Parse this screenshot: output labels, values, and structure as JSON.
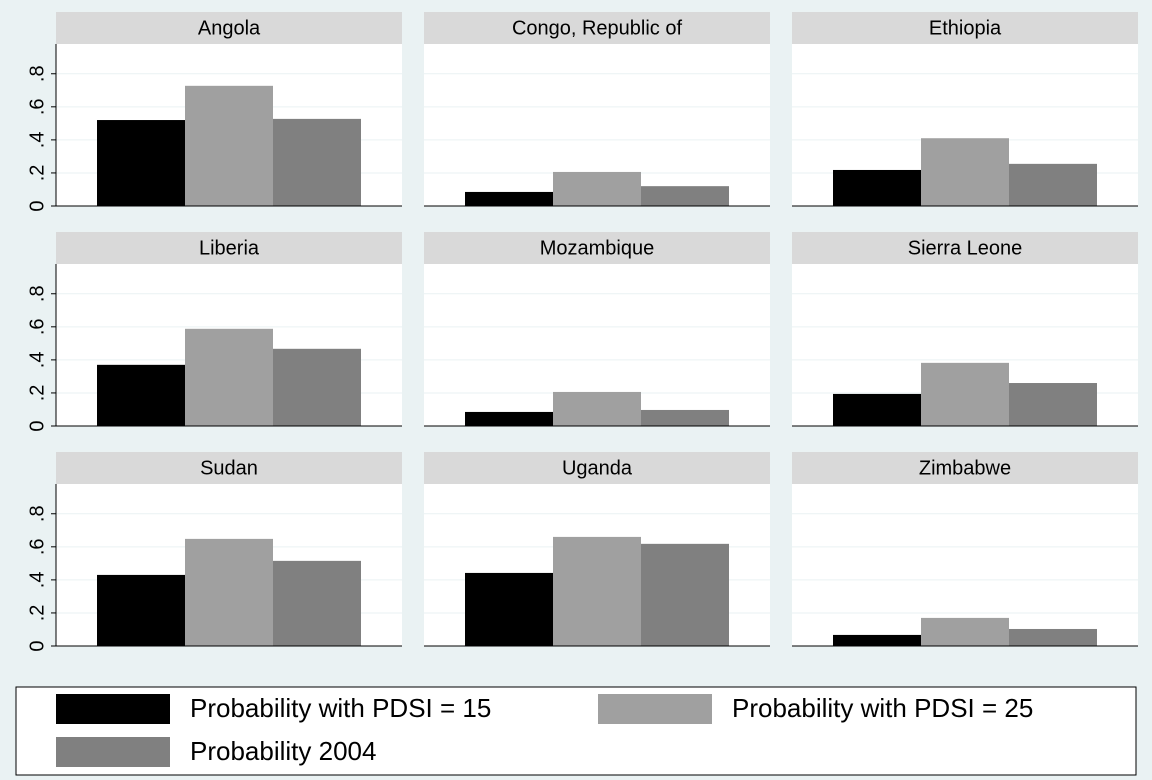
{
  "chart_data": {
    "type": "bar",
    "categories": [
      "Angola",
      "Congo, Republic of",
      "Ethiopia",
      "Liberia",
      "Mozambique",
      "Sierra Leone",
      "Sudan",
      "Uganda",
      "Zimbabwe"
    ],
    "series": [
      {
        "name": "Probability with PDSI = 15",
        "color": "#000000",
        "values": [
          0.52,
          0.085,
          0.218,
          0.37,
          0.085,
          0.194,
          0.43,
          0.442,
          0.067
        ]
      },
      {
        "name": "Probability with PDSI = 25",
        "color": "#a0a0a0",
        "values": [
          0.727,
          0.206,
          0.41,
          0.588,
          0.206,
          0.382,
          0.648,
          0.66,
          0.17
        ]
      },
      {
        "name": "Probability 2004",
        "color": "#808080",
        "values": [
          0.527,
          0.12,
          0.255,
          0.467,
          0.097,
          0.26,
          0.515,
          0.618,
          0.103
        ]
      }
    ],
    "ylim": [
      0,
      0.98
    ],
    "yticks": [
      0,
      {
        "value": 0.2,
        "label": ".2"
      },
      {
        "value": 0.4,
        "label": ".4"
      },
      {
        "value": 0.6,
        "label": ".6"
      },
      {
        "value": 0.8,
        "label": ".8"
      }
    ],
    "grid": true
  }
}
